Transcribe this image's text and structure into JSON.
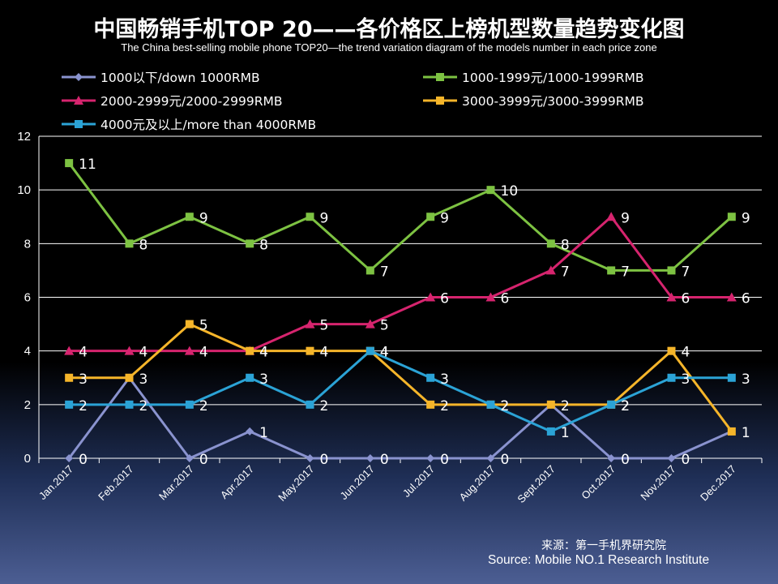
{
  "title": "中国畅销手机TOP 20——各价格区上榜机型数量趋势变化图",
  "subtitle": "The China best-selling mobile phone TOP20—the trend variation diagram of the models number in each price zone",
  "source_cn": "来源：第一手机界研究院",
  "source_en": "Source: Mobile NO.1 Research Institute",
  "chart_data": {
    "type": "line",
    "title": "中国畅销手机TOP 20——各价格区上榜机型数量趋势变化图",
    "xlabel": "",
    "ylabel": "",
    "ylim": [
      0,
      12
    ],
    "yticks": [
      "0",
      "2",
      "4",
      "6",
      "8",
      "10",
      "12"
    ],
    "grid": true,
    "legend": "top",
    "categories": [
      "Jan.2017",
      "Feb.2017",
      "Mar.2017",
      "Apr.2017",
      "May.2017",
      "Jun.2017",
      "Jul.2017",
      "Aug.2017",
      "Sept.2017",
      "Oct.2017",
      "Nov.2017",
      "Dec.2017"
    ],
    "series": [
      {
        "name": "1000以下/down 1000RMB",
        "color": "#8a93cf",
        "marker": "diamond",
        "values": [
          0,
          3,
          0,
          1,
          0,
          0,
          0,
          0,
          2,
          0,
          0,
          1
        ],
        "labels": [
          "0",
          "",
          "0",
          "1",
          "0",
          "0",
          "0",
          "0",
          "",
          "0",
          "0",
          ""
        ]
      },
      {
        "name": "1000-1999元/1000-1999RMB",
        "color": "#7dc242",
        "marker": "square",
        "values": [
          11,
          8,
          9,
          8,
          9,
          7,
          9,
          10,
          8,
          7,
          7,
          9
        ],
        "labels": [
          "11",
          "8",
          "9",
          "8",
          "9",
          "7",
          "9",
          "10",
          "8",
          "7",
          "7",
          "9"
        ]
      },
      {
        "name": "2000-2999元/2000-2999RMB",
        "color": "#d6246e",
        "marker": "triangle",
        "values": [
          4,
          4,
          4,
          4,
          5,
          5,
          6,
          6,
          7,
          9,
          6,
          6
        ],
        "labels": [
          "4",
          "4",
          "4",
          "4",
          "5",
          "5",
          "6",
          "6",
          "7",
          "9",
          "6",
          "6"
        ]
      },
      {
        "name": "3000-3999元/3000-3999RMB",
        "color": "#f5b52a",
        "marker": "square",
        "values": [
          3,
          3,
          5,
          4,
          4,
          4,
          2,
          2,
          2,
          2,
          4,
          1
        ],
        "labels": [
          "3",
          "3",
          "5",
          "4",
          "4",
          "4",
          "2",
          "2",
          "2",
          "2",
          "4",
          "1"
        ]
      },
      {
        "name": "4000元及以上/more than 4000RMB",
        "color": "#2ba3d6",
        "marker": "square",
        "values": [
          2,
          2,
          2,
          3,
          2,
          4,
          3,
          2,
          1,
          2,
          3,
          3
        ],
        "labels": [
          "2",
          "2",
          "2",
          "3",
          "2",
          "4",
          "3",
          "2",
          "1",
          "2",
          "3",
          "3"
        ]
      }
    ]
  }
}
